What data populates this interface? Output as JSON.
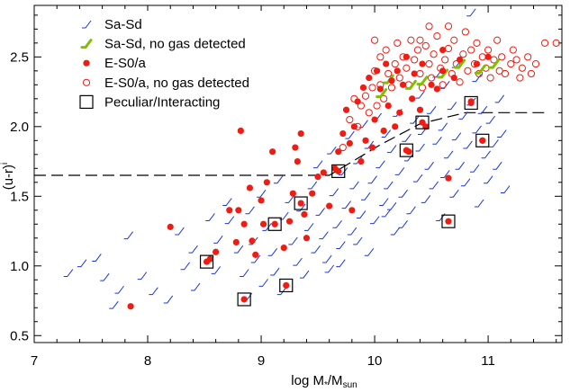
{
  "chart_data": {
    "type": "scatter",
    "xlabel": "log M",
    "xlabel_sub1": "*",
    "xlabel_mid": "/M",
    "xlabel_sub2": "sun",
    "ylabel": "(u-r)",
    "ylabel_sup": "i",
    "xlim": [
      7.0,
      11.65
    ],
    "ylim": [
      0.45,
      2.87
    ],
    "xticks": [
      "7",
      "8",
      "9",
      "10",
      "11"
    ],
    "yticks": [
      "0.5",
      "1.0",
      "1.5",
      "2.0",
      "2.5"
    ],
    "colors": {
      "spiral": "#1a35e0",
      "spiral_nogas": "#7fbf00",
      "elliptical": "#ee1c12",
      "peculiar": "#000000"
    },
    "legend": [
      {
        "label": "Sa-Sd",
        "marker": "slash-blue"
      },
      {
        "label": "Sa-Sd, no gas detected",
        "marker": "slash-green"
      },
      {
        "label": "E-S0/a",
        "marker": "filled-circle"
      },
      {
        "label": "E-S0/a, no gas detected",
        "marker": "open-circle"
      },
      {
        "label": "Peculiar/Interacting",
        "marker": "open-square"
      }
    ],
    "dashed_line": [
      [
        7.0,
        1.65
      ],
      [
        9.6,
        1.65
      ],
      [
        10.05,
        1.87
      ],
      [
        10.4,
        2.02
      ],
      [
        10.8,
        2.1
      ],
      [
        11.5,
        2.1
      ]
    ],
    "series": [
      {
        "name": "Sa-Sd",
        "marker": "slash-blue",
        "points": [
          [
            7.3,
            0.95
          ],
          [
            7.42,
            1.02
          ],
          [
            7.55,
            1.06
          ],
          [
            7.62,
            0.92
          ],
          [
            7.7,
            0.72
          ],
          [
            7.75,
            0.83
          ],
          [
            7.83,
            1.22
          ],
          [
            7.95,
            0.93
          ],
          [
            8.05,
            0.82
          ],
          [
            8.18,
            0.76
          ],
          [
            8.28,
            1.25
          ],
          [
            8.33,
            1.0
          ],
          [
            8.42,
            0.85
          ],
          [
            8.55,
            1.35
          ],
          [
            8.6,
            0.97
          ],
          [
            8.62,
            1.19
          ],
          [
            8.7,
            1.46
          ],
          [
            8.72,
            1.33
          ],
          [
            8.8,
            1.12
          ],
          [
            8.85,
            0.95
          ],
          [
            8.88,
            0.78
          ],
          [
            8.9,
            1.4
          ],
          [
            8.93,
            1.18
          ],
          [
            8.95,
            1.05
          ],
          [
            9.0,
            1.52
          ],
          [
            9.02,
            0.88
          ],
          [
            9.05,
            1.28
          ],
          [
            9.1,
            1.1
          ],
          [
            9.12,
            0.96
          ],
          [
            9.15,
            1.62
          ],
          [
            9.2,
            1.36
          ],
          [
            9.25,
            1.48
          ],
          [
            9.28,
            1.18
          ],
          [
            9.32,
            1.03
          ],
          [
            9.35,
            1.42
          ],
          [
            9.38,
            0.94
          ],
          [
            9.42,
            1.28
          ],
          [
            9.45,
            1.58
          ],
          [
            9.48,
            1.12
          ],
          [
            9.5,
            1.73
          ],
          [
            9.52,
            1.39
          ],
          [
            9.55,
            1.22
          ],
          [
            9.58,
            1.05
          ],
          [
            9.62,
            1.83
          ],
          [
            9.64,
            1.53
          ],
          [
            9.67,
            1.3
          ],
          [
            9.7,
            1.15
          ],
          [
            9.72,
            1.68
          ],
          [
            9.75,
            1.44
          ],
          [
            9.78,
            1.94
          ],
          [
            9.8,
            1.25
          ],
          [
            9.82,
            1.58
          ],
          [
            9.85,
            1.76
          ],
          [
            9.88,
            1.37
          ],
          [
            9.9,
            2.02
          ],
          [
            9.92,
            1.5
          ],
          [
            9.95,
            1.87
          ],
          [
            9.98,
            1.62
          ],
          [
            10.0,
            1.33
          ],
          [
            10.02,
            2.07
          ],
          [
            10.05,
            1.73
          ],
          [
            10.08,
            1.46
          ],
          [
            10.1,
            1.95
          ],
          [
            10.12,
            1.58
          ],
          [
            10.15,
            1.84
          ],
          [
            10.18,
            1.25
          ],
          [
            10.2,
            2.1
          ],
          [
            10.22,
            1.68
          ],
          [
            10.25,
            1.52
          ],
          [
            10.28,
            1.92
          ],
          [
            10.3,
            1.78
          ],
          [
            10.32,
            1.4
          ],
          [
            10.35,
            2.05
          ],
          [
            10.38,
            1.63
          ],
          [
            10.4,
            1.85
          ],
          [
            10.42,
            1.97
          ],
          [
            10.45,
            1.48
          ],
          [
            10.48,
            1.72
          ],
          [
            10.5,
            2.12
          ],
          [
            10.52,
            1.58
          ],
          [
            10.55,
            1.9
          ],
          [
            10.58,
            1.35
          ],
          [
            10.6,
            2.0
          ],
          [
            10.62,
            1.66
          ],
          [
            10.65,
            1.8
          ],
          [
            10.68,
            2.15
          ],
          [
            10.7,
            1.52
          ],
          [
            10.72,
            1.93
          ],
          [
            10.75,
            1.72
          ],
          [
            10.78,
            2.08
          ],
          [
            10.8,
            1.6
          ],
          [
            10.82,
            1.87
          ],
          [
            10.85,
            2.18
          ],
          [
            10.88,
            1.7
          ],
          [
            10.9,
            1.98
          ],
          [
            10.92,
            1.45
          ],
          [
            10.95,
            2.12
          ],
          [
            10.98,
            1.8
          ],
          [
            11.0,
            1.62
          ],
          [
            11.02,
            2.05
          ],
          [
            11.05,
            1.88
          ],
          [
            11.08,
            1.72
          ],
          [
            11.1,
            2.2
          ],
          [
            11.12,
            1.95
          ],
          [
            11.15,
            1.55
          ],
          [
            10.4,
            2.23
          ],
          [
            10.62,
            2.3
          ],
          [
            10.72,
            2.45
          ],
          [
            10.85,
            2.82
          ],
          [
            10.55,
            2.38
          ],
          [
            10.9,
            2.35
          ],
          [
            10.1,
            1.38
          ],
          [
            9.6,
            0.98
          ],
          [
            9.85,
            1.18
          ],
          [
            10.25,
            1.3
          ],
          [
            9.95,
            1.1
          ],
          [
            8.4,
            1.12
          ],
          [
            9.18,
            0.82
          ],
          [
            9.7,
            1.02
          ],
          [
            10.15,
            1.43
          ]
        ]
      },
      {
        "name": "Sa-Sd, no gas detected",
        "marker": "slash-green",
        "points": [
          [
            10.06,
            2.24
          ],
          [
            10.12,
            2.34
          ],
          [
            10.32,
            2.3
          ],
          [
            10.42,
            2.33
          ],
          [
            10.6,
            2.38
          ],
          [
            10.75,
            2.45
          ],
          [
            10.93,
            2.41
          ],
          [
            11.05,
            2.45
          ]
        ]
      },
      {
        "name": "E-S0/a",
        "marker": "filled-circle",
        "points": [
          [
            7.85,
            0.71
          ],
          [
            8.2,
            1.28
          ],
          [
            8.55,
            1.05
          ],
          [
            8.6,
            1.1
          ],
          [
            8.72,
            1.4
          ],
          [
            8.78,
            1.17
          ],
          [
            8.82,
            1.97
          ],
          [
            8.8,
            1.4
          ],
          [
            8.85,
            1.3
          ],
          [
            8.9,
            1.56
          ],
          [
            8.92,
            1.18
          ],
          [
            8.95,
            1.08
          ],
          [
            9.0,
            1.47
          ],
          [
            9.02,
            1.3
          ],
          [
            9.05,
            1.6
          ],
          [
            9.1,
            1.82
          ],
          [
            9.2,
            1.13
          ],
          [
            9.25,
            1.32
          ],
          [
            9.28,
            1.52
          ],
          [
            9.3,
            1.85
          ],
          [
            9.32,
            1.75
          ],
          [
            9.35,
            1.95
          ],
          [
            9.38,
            1.37
          ],
          [
            9.4,
            1.2
          ],
          [
            9.45,
            1.52
          ],
          [
            9.5,
            1.64
          ],
          [
            9.55,
            1.67
          ],
          [
            9.6,
            1.43
          ],
          [
            9.65,
            1.7
          ],
          [
            9.68,
            1.82
          ],
          [
            9.72,
            1.95
          ],
          [
            9.75,
            2.12
          ],
          [
            9.78,
            1.88
          ],
          [
            9.8,
            1.4
          ],
          [
            9.82,
            2.0
          ],
          [
            9.85,
            2.18
          ],
          [
            9.88,
            1.75
          ],
          [
            9.9,
            2.28
          ],
          [
            9.92,
            1.9
          ],
          [
            9.95,
            2.35
          ],
          [
            9.98,
            1.85
          ],
          [
            10.0,
            2.05
          ],
          [
            10.02,
            2.4
          ],
          [
            10.05,
            2.27
          ],
          [
            10.08,
            1.97
          ],
          [
            10.1,
            2.45
          ],
          [
            10.12,
            2.15
          ],
          [
            10.15,
            2.33
          ],
          [
            10.18,
            2.0
          ],
          [
            10.2,
            2.4
          ],
          [
            10.22,
            2.1
          ],
          [
            10.25,
            2.3
          ],
          [
            10.28,
            2.5
          ],
          [
            10.3,
            1.82
          ],
          [
            10.33,
            2.2
          ],
          [
            10.35,
            2.38
          ],
          [
            10.4,
            2.12
          ],
          [
            10.42,
            2.45
          ],
          [
            10.45,
            2.0
          ],
          [
            10.5,
            2.3
          ],
          [
            10.55,
            2.27
          ],
          [
            10.6,
            2.4
          ],
          [
            10.65,
            1.63
          ],
          [
            10.7,
            2.35
          ],
          [
            10.75,
            2.48
          ],
          [
            10.85,
            2.18
          ],
          [
            10.9,
            2.45
          ],
          [
            10.95,
            1.9
          ],
          [
            10.6,
            2.55
          ],
          [
            11.0,
            2.5
          ]
        ]
      },
      {
        "name": "E-S0/a, no gas detected",
        "marker": "open-circle",
        "points": [
          [
            9.72,
            1.85
          ],
          [
            9.78,
            2.05
          ],
          [
            9.85,
            2.0
          ],
          [
            9.88,
            2.15
          ],
          [
            9.92,
            2.22
          ],
          [
            9.95,
            2.1
          ],
          [
            9.98,
            2.28
          ],
          [
            10.0,
            2.4
          ],
          [
            10.02,
            2.15
          ],
          [
            10.05,
            2.5
          ],
          [
            10.05,
            2.3
          ],
          [
            10.08,
            2.2
          ],
          [
            10.1,
            2.55
          ],
          [
            10.12,
            2.38
          ],
          [
            10.15,
            2.28
          ],
          [
            10.18,
            2.45
          ],
          [
            10.2,
            2.6
          ],
          [
            10.22,
            2.35
          ],
          [
            10.25,
            2.5
          ],
          [
            10.28,
            2.42
          ],
          [
            10.3,
            2.3
          ],
          [
            10.32,
            2.62
          ],
          [
            10.35,
            2.48
          ],
          [
            10.38,
            2.55
          ],
          [
            10.4,
            2.38
          ],
          [
            10.42,
            2.28
          ],
          [
            10.45,
            2.58
          ],
          [
            10.48,
            2.45
          ],
          [
            10.5,
            2.35
          ],
          [
            10.52,
            2.52
          ],
          [
            10.55,
            2.65
          ],
          [
            10.58,
            2.42
          ],
          [
            10.6,
            2.3
          ],
          [
            10.62,
            2.48
          ],
          [
            10.65,
            2.56
          ],
          [
            10.68,
            2.38
          ],
          [
            10.7,
            2.62
          ],
          [
            10.72,
            2.45
          ],
          [
            10.75,
            2.32
          ],
          [
            10.78,
            2.52
          ],
          [
            10.8,
            2.68
          ],
          [
            10.82,
            2.4
          ],
          [
            10.85,
            2.55
          ],
          [
            10.88,
            2.45
          ],
          [
            10.9,
            2.6
          ],
          [
            10.92,
            2.38
          ],
          [
            10.95,
            2.5
          ],
          [
            10.98,
            2.42
          ],
          [
            11.0,
            2.55
          ],
          [
            11.02,
            2.35
          ],
          [
            11.05,
            2.48
          ],
          [
            11.08,
            2.62
          ],
          [
            11.1,
            2.4
          ],
          [
            11.12,
            2.5
          ],
          [
            11.15,
            2.38
          ],
          [
            11.2,
            2.45
          ],
          [
            11.22,
            2.55
          ],
          [
            11.25,
            2.48
          ],
          [
            11.28,
            2.35
          ],
          [
            11.3,
            2.42
          ],
          [
            11.35,
            2.5
          ],
          [
            11.38,
            2.38
          ],
          [
            11.42,
            2.45
          ],
          [
            11.5,
            2.6
          ],
          [
            11.6,
            2.6
          ],
          [
            10.48,
            2.72
          ],
          [
            10.4,
            2.62
          ],
          [
            9.82,
            2.2
          ],
          [
            10.0,
            2.62
          ],
          [
            10.65,
            2.72
          ]
        ]
      },
      {
        "name": "Peculiar/Interacting",
        "marker": "open-square",
        "points": [
          [
            8.52,
            1.03
          ],
          [
            8.85,
            0.76
          ],
          [
            9.12,
            1.3
          ],
          [
            9.22,
            0.86
          ],
          [
            9.35,
            1.45
          ],
          [
            9.68,
            1.68
          ],
          [
            10.28,
            1.83
          ],
          [
            10.42,
            2.03
          ],
          [
            10.85,
            2.17
          ],
          [
            10.95,
            1.9
          ],
          [
            10.65,
            1.32
          ]
        ]
      }
    ]
  }
}
